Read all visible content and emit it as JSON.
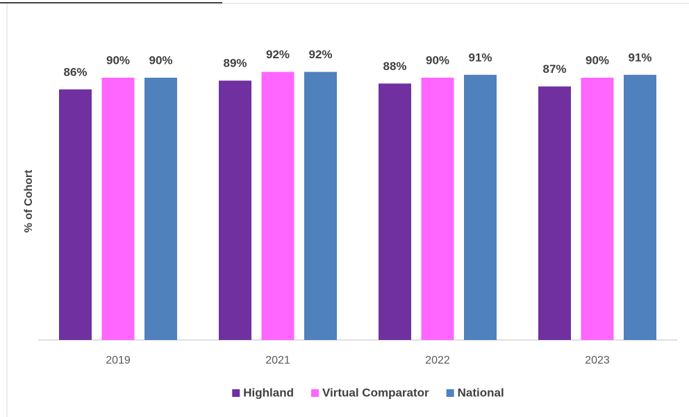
{
  "chart_data": {
    "type": "bar",
    "y_label": "% of Cohort",
    "categories": [
      "2019",
      "2021",
      "2022",
      "2023"
    ],
    "series": [
      {
        "name": "Highland",
        "color": "#7030a0",
        "values": [
          86,
          89,
          88,
          87
        ],
        "value_labels": [
          "86%",
          "89%",
          "88%",
          "87%"
        ]
      },
      {
        "name": "Virtual Comparator",
        "color": "#ff66ff",
        "values": [
          90,
          92,
          90,
          90
        ],
        "value_labels": [
          "90%",
          "92%",
          "90%",
          "90%"
        ]
      },
      {
        "name": "National",
        "color": "#4f81bd",
        "values": [
          90,
          92,
          91,
          91
        ],
        "value_labels": [
          "90%",
          "92%",
          "91%",
          "91%"
        ]
      }
    ],
    "ylim": [
      0,
      100
    ],
    "legend": "bottom"
  }
}
